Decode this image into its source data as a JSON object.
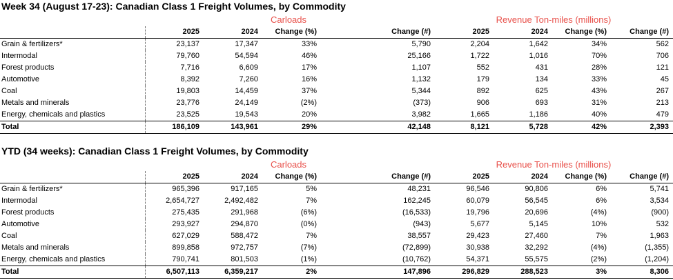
{
  "weekly": {
    "title": "Week 34 (August 17-23): Canadian Class 1 Freight Volumes, by Commodity",
    "carloads_label": "Carloads",
    "revenue_label": "Revenue Ton-miles (millions)",
    "columns": [
      "2025",
      "2024",
      "Change (%)",
      "Change (#)",
      "2025",
      "2024",
      "Change (%)",
      "Change (#)"
    ],
    "rows": [
      {
        "label": "Grain & fertilizers*",
        "values": [
          "23,137",
          "17,347",
          "33%",
          "5,790",
          "2,204",
          "1,642",
          "34%",
          "562"
        ]
      },
      {
        "label": "Intermodal",
        "values": [
          "79,760",
          "54,594",
          "46%",
          "25,166",
          "1,722",
          "1,016",
          "70%",
          "706"
        ]
      },
      {
        "label": "Forest products",
        "values": [
          "7,716",
          "6,609",
          "17%",
          "1,107",
          "552",
          "431",
          "28%",
          "121"
        ]
      },
      {
        "label": "Automotive",
        "values": [
          "8,392",
          "7,260",
          "16%",
          "1,132",
          "179",
          "134",
          "33%",
          "45"
        ]
      },
      {
        "label": "Coal",
        "values": [
          "19,803",
          "14,459",
          "37%",
          "5,344",
          "892",
          "625",
          "43%",
          "267"
        ]
      },
      {
        "label": "Metals and minerals",
        "values": [
          "23,776",
          "24,149",
          "(2%)",
          "(373)",
          "906",
          "693",
          "31%",
          "213"
        ]
      },
      {
        "label": "Energy, chemicals and plastics",
        "values": [
          "23,525",
          "19,543",
          "20%",
          "3,982",
          "1,665",
          "1,186",
          "40%",
          "479"
        ]
      }
    ],
    "total": {
      "label": "Total",
      "values": [
        "186,109",
        "143,961",
        "29%",
        "42,148",
        "8,121",
        "5,728",
        "42%",
        "2,393"
      ]
    }
  },
  "ytd": {
    "title": "YTD (34 weeks): Canadian Class 1 Freight Volumes, by Commodity",
    "carloads_label": "Carloads",
    "revenue_label": "Revenue Ton-miles (millions)",
    "columns": [
      "2025",
      "2024",
      "Change (%)",
      "Change (#)",
      "2025",
      "2024",
      "Change (%)",
      "Change (#)"
    ],
    "rows": [
      {
        "label": "Grain & fertilizers*",
        "values": [
          "965,396",
          "917,165",
          "5%",
          "48,231",
          "96,546",
          "90,806",
          "6%",
          "5,741"
        ]
      },
      {
        "label": "Intermodal",
        "values": [
          "2,654,727",
          "2,492,482",
          "7%",
          "162,245",
          "60,079",
          "56,545",
          "6%",
          "3,534"
        ]
      },
      {
        "label": "Forest products",
        "values": [
          "275,435",
          "291,968",
          "(6%)",
          "(16,533)",
          "19,796",
          "20,696",
          "(4%)",
          "(900)"
        ]
      },
      {
        "label": "Automotive",
        "values": [
          "293,927",
          "294,870",
          "(0%)",
          "(943)",
          "5,677",
          "5,145",
          "10%",
          "532"
        ]
      },
      {
        "label": "Coal",
        "values": [
          "627,029",
          "588,472",
          "7%",
          "38,557",
          "29,423",
          "27,460",
          "7%",
          "1,963"
        ]
      },
      {
        "label": "Metals and minerals",
        "values": [
          "899,858",
          "972,757",
          "(7%)",
          "(72,899)",
          "30,938",
          "32,292",
          "(4%)",
          "(1,355)"
        ]
      },
      {
        "label": "Energy, chemicals and plastics",
        "values": [
          "790,741",
          "801,503",
          "(1%)",
          "(10,762)",
          "54,371",
          "55,575",
          "(2%)",
          "(1,204)"
        ]
      }
    ],
    "total": {
      "label": "Total",
      "values": [
        "6,507,113",
        "6,359,217",
        "2%",
        "147,896",
        "296,829",
        "288,523",
        "3%",
        "8,306"
      ]
    }
  },
  "colors": {
    "group_header": "#e8504a"
  }
}
